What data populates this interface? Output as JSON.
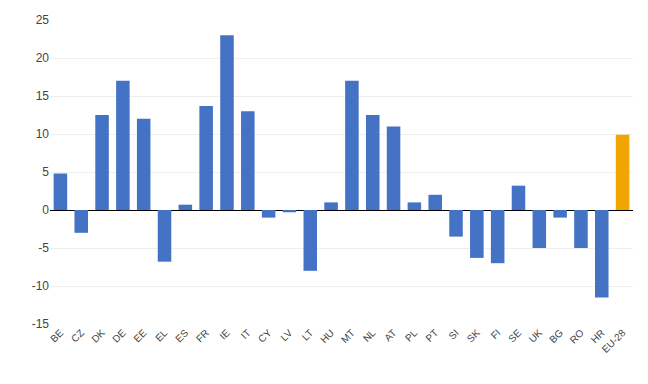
{
  "chart_data": {
    "type": "bar",
    "categories": [
      "BE",
      "CZ",
      "DK",
      "DE",
      "EE",
      "EL",
      "ES",
      "FR",
      "IE",
      "IT",
      "CY",
      "LV",
      "LT",
      "HU",
      "MT",
      "NL",
      "AT",
      "PL",
      "PT",
      "SI",
      "SK",
      "FI",
      "SE",
      "UK",
      "BG",
      "RO",
      "HR",
      "EU-28"
    ],
    "values": [
      4.8,
      -3.0,
      12.5,
      17.0,
      12.0,
      -6.8,
      0.7,
      13.7,
      23.0,
      13.0,
      -1.0,
      -0.3,
      -8.0,
      1.0,
      17.0,
      12.5,
      11.0,
      1.0,
      2.0,
      -3.5,
      -6.3,
      -7.0,
      3.2,
      -5.0,
      -1.0,
      -5.0,
      -11.5,
      9.9
    ],
    "colors": [
      "#4472C4",
      "#4472C4",
      "#4472C4",
      "#4472C4",
      "#4472C4",
      "#4472C4",
      "#4472C4",
      "#4472C4",
      "#4472C4",
      "#4472C4",
      "#4472C4",
      "#4472C4",
      "#4472C4",
      "#4472C4",
      "#4472C4",
      "#4472C4",
      "#4472C4",
      "#4472C4",
      "#4472C4",
      "#4472C4",
      "#4472C4",
      "#4472C4",
      "#4472C4",
      "#4472C4",
      "#4472C4",
      "#4472C4",
      "#4472C4",
      "#F0A500"
    ],
    "ylim": [
      -15,
      25
    ],
    "yticks": [
      -15,
      -10,
      -5,
      0,
      5,
      10,
      15,
      20,
      25
    ],
    "grid": true
  }
}
